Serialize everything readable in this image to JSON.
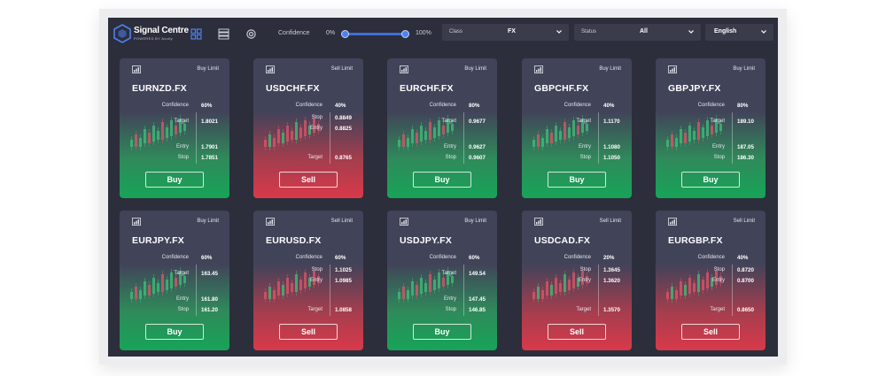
{
  "header": {
    "logo_title": "Signal Centre",
    "logo_subtitle": "POWERED BY Acuity",
    "icons": [
      "grid-view-icon",
      "list-view-icon",
      "settings-icon"
    ],
    "confidence_label": "Confidence",
    "confidence_min_label": "0%",
    "confidence_max_label": "100%",
    "confidence_range": [
      0,
      100
    ],
    "class_filter": {
      "label": "Class",
      "value": "FX"
    },
    "status_filter": {
      "label": "Status",
      "value": "All"
    },
    "language": {
      "value": "English"
    }
  },
  "colors": {
    "background": "#2c2e3c",
    "card": "#414359",
    "buy": "#17a458",
    "sell": "#d9394a",
    "slider": "#3f6fd6"
  },
  "cards": [
    {
      "symbol": "EURNZD.FX",
      "order_type": "Buy Limit",
      "side": "buy",
      "confidence_label": "Confidence",
      "confidence": "60%",
      "target_label": "Target",
      "target": "1.8021",
      "entry_label": "Entry",
      "entry": "1.7901",
      "stop_label": "Stop",
      "stop": "1.7851",
      "button": "Buy"
    },
    {
      "symbol": "USDCHF.FX",
      "order_type": "Sell Limit",
      "side": "sell",
      "confidence_label": "Confidence",
      "confidence": "40%",
      "stop_label": "Stop",
      "stop": "0.8849",
      "entry_label": "Entry",
      "entry": "0.8825",
      "target_label": "Target",
      "target": "0.8765",
      "button": "Sell"
    },
    {
      "symbol": "EURCHF.FX",
      "order_type": "Buy Limit",
      "side": "buy",
      "confidence_label": "Confidence",
      "confidence": "80%",
      "target_label": "Target",
      "target": "0.9677",
      "entry_label": "Entry",
      "entry": "0.9627",
      "stop_label": "Stop",
      "stop": "0.9607",
      "button": "Buy"
    },
    {
      "symbol": "GBPCHF.FX",
      "order_type": "Buy Limit",
      "side": "buy",
      "confidence_label": "Confidence",
      "confidence": "40%",
      "target_label": "Target",
      "target": "1.1170",
      "entry_label": "Entry",
      "entry": "1.1080",
      "stop_label": "Stop",
      "stop": "1.1050",
      "button": "Buy"
    },
    {
      "symbol": "GBPJPY.FX",
      "order_type": "Buy Limit",
      "side": "buy",
      "confidence_label": "Confidence",
      "confidence": "80%",
      "target_label": "Target",
      "target": "189.10",
      "entry_label": "Entry",
      "entry": "187.05",
      "stop_label": "Stop",
      "stop": "186.30",
      "button": "Buy"
    },
    {
      "symbol": "EURJPY.FX",
      "order_type": "Buy Limit",
      "side": "buy",
      "confidence_label": "Confidence",
      "confidence": "60%",
      "target_label": "Target",
      "target": "163.45",
      "entry_label": "Entry",
      "entry": "161.80",
      "stop_label": "Stop",
      "stop": "161.20",
      "button": "Buy"
    },
    {
      "symbol": "EURUSD.FX",
      "order_type": "Sell Limit",
      "side": "sell",
      "confidence_label": "Confidence",
      "confidence": "60%",
      "stop_label": "Stop",
      "stop": "1.1025",
      "entry_label": "Entry",
      "entry": "1.0985",
      "target_label": "Target",
      "target": "1.0858",
      "button": "Sell"
    },
    {
      "symbol": "USDJPY.FX",
      "order_type": "Buy Limit",
      "side": "buy",
      "confidence_label": "Confidence",
      "confidence": "60%",
      "target_label": "Target",
      "target": "149.54",
      "entry_label": "Entry",
      "entry": "147.45",
      "stop_label": "Stop",
      "stop": "146.85",
      "button": "Buy"
    },
    {
      "symbol": "USDCAD.FX",
      "order_type": "Sell Limit",
      "side": "sell",
      "confidence_label": "Confidence",
      "confidence": "20%",
      "stop_label": "Stop",
      "stop": "1.3645",
      "entry_label": "Entry",
      "entry": "1.3620",
      "target_label": "Target",
      "target": "1.3570",
      "button": "Sell"
    },
    {
      "symbol": "EURGBP.FX",
      "order_type": "Sell Limit",
      "side": "sell",
      "confidence_label": "Confidence",
      "confidence": "40%",
      "stop_label": "Stop",
      "stop": "0.8720",
      "entry_label": "Entry",
      "entry": "0.8700",
      "target_label": "Target",
      "target": "0.8650",
      "button": "Sell"
    }
  ]
}
